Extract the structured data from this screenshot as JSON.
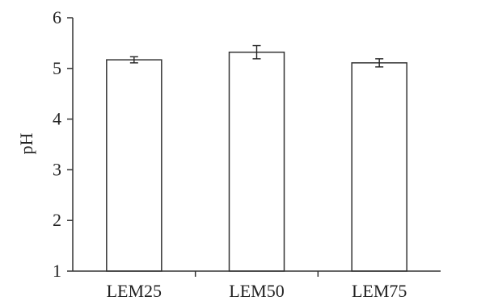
{
  "chart_data": {
    "type": "bar",
    "categories": [
      "LEM25",
      "LEM50",
      "LEM75"
    ],
    "values": [
      5.17,
      5.32,
      5.11
    ],
    "error": [
      0.06,
      0.13,
      0.08
    ],
    "title": "",
    "xlabel": "",
    "ylabel": "pH",
    "ylim": [
      1,
      6
    ],
    "yticks": [
      "1",
      "2",
      "3",
      "4",
      "5",
      "6"
    ],
    "grid": false
  }
}
